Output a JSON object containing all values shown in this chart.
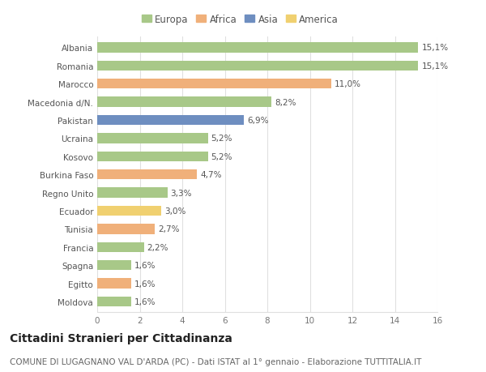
{
  "categories": [
    "Albania",
    "Romania",
    "Marocco",
    "Macedonia d/N.",
    "Pakistan",
    "Ucraina",
    "Kosovo",
    "Burkina Faso",
    "Regno Unito",
    "Ecuador",
    "Tunisia",
    "Francia",
    "Spagna",
    "Egitto",
    "Moldova"
  ],
  "values": [
    15.1,
    15.1,
    11.0,
    8.2,
    6.9,
    5.2,
    5.2,
    4.7,
    3.3,
    3.0,
    2.7,
    2.2,
    1.6,
    1.6,
    1.6
  ],
  "labels": [
    "15,1%",
    "15,1%",
    "11,0%",
    "8,2%",
    "6,9%",
    "5,2%",
    "5,2%",
    "4,7%",
    "3,3%",
    "3,0%",
    "2,7%",
    "2,2%",
    "1,6%",
    "1,6%",
    "1,6%"
  ],
  "continents": [
    "Europa",
    "Europa",
    "Africa",
    "Europa",
    "Asia",
    "Europa",
    "Europa",
    "Africa",
    "Europa",
    "America",
    "Africa",
    "Europa",
    "Europa",
    "Africa",
    "Europa"
  ],
  "continent_colors": {
    "Europa": "#a8c888",
    "Africa": "#f0b07a",
    "Asia": "#6e8ec0",
    "America": "#f0d070"
  },
  "legend_order": [
    "Europa",
    "Africa",
    "Asia",
    "America"
  ],
  "title": "Cittadini Stranieri per Cittadinanza",
  "subtitle": "COMUNE DI LUGAGNANO VAL D'ARDA (PC) - Dati ISTAT al 1° gennaio - Elaborazione TUTTITALIA.IT",
  "xlim": [
    0,
    16
  ],
  "xticks": [
    0,
    2,
    4,
    6,
    8,
    10,
    12,
    14,
    16
  ],
  "background_color": "#ffffff",
  "grid_color": "#e0e0e0",
  "bar_height": 0.55,
  "title_fontsize": 10,
  "subtitle_fontsize": 7.5,
  "label_fontsize": 7.5,
  "tick_fontsize": 7.5,
  "legend_fontsize": 8.5
}
